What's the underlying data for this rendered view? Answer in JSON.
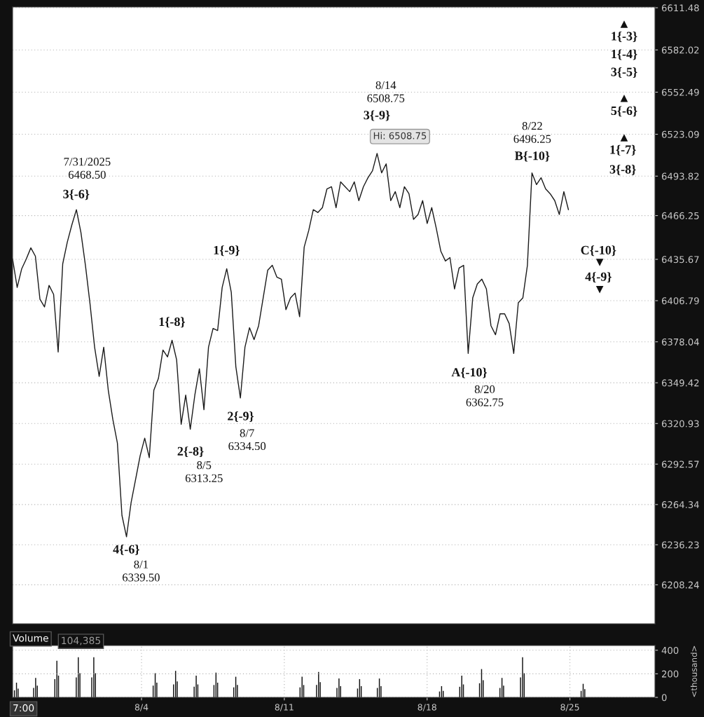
{
  "chart_data": [
    {
      "type": "line",
      "color": "#1a1a1a",
      "grid": "y",
      "ylim": [
        6181,
        6612
      ],
      "yticks": [
        6208.24,
        6236.23,
        6264.34,
        6292.57,
        6320.93,
        6349.42,
        6378.04,
        6406.79,
        6435.67,
        6466.25,
        6493.82,
        6523.09,
        6552.49,
        6582.02,
        6611.48
      ],
      "categories": [
        null,
        null,
        null,
        null,
        null,
        null,
        null,
        null,
        null,
        null,
        null,
        null,
        null,
        null,
        null,
        null,
        null,
        null,
        null,
        null,
        null,
        null,
        null,
        null,
        null,
        null,
        null,
        null,
        null,
        null,
        null,
        null,
        null,
        null,
        null,
        null,
        null,
        null,
        null,
        null,
        null,
        null,
        null,
        null,
        null,
        null,
        null,
        null,
        null,
        null,
        null,
        null,
        null,
        null,
        null,
        null,
        null,
        null,
        null,
        null,
        null,
        null,
        null,
        null,
        null,
        null,
        null,
        null,
        null,
        null,
        null,
        null,
        null,
        null,
        null,
        null,
        null,
        null,
        null,
        null,
        null,
        null,
        null,
        null,
        null,
        null,
        null,
        null,
        null,
        null,
        null,
        null,
        null,
        null,
        null,
        null,
        null,
        null,
        null,
        null,
        null,
        null,
        null,
        null,
        null,
        null,
        null,
        null,
        null,
        null,
        null,
        null,
        null,
        null,
        null,
        null,
        null,
        null,
        null,
        null,
        null,
        null,
        null,
        null,
        null,
        null,
        null,
        null,
        null,
        null,
        null,
        null,
        null,
        null,
        null,
        null,
        null,
        null,
        null,
        null,
        null,
        null
      ],
      "values": [
        6435.9,
        6416.0,
        6429.1,
        6435.9,
        6443.7,
        6437.9,
        6407.8,
        6402.4,
        6417.5,
        6411.2,
        6370.9,
        6432.5,
        6447.6,
        6459.7,
        6470.4,
        6454.4,
        6431.1,
        6404.4,
        6374.3,
        6353.9,
        6374.3,
        6344.2,
        6323.8,
        6307.3,
        6256.8,
        6241.8,
        6265.5,
        6282.0,
        6298.5,
        6310.7,
        6297.1,
        6344.2,
        6352.4,
        6372.3,
        6367.5,
        6379.1,
        6365.5,
        6320.4,
        6340.8,
        6317.0,
        6340.8,
        6359.2,
        6330.6,
        6374.3,
        6387.4,
        6385.9,
        6416.0,
        6429.1,
        6412.6,
        6360.7,
        6338.8,
        6374.3,
        6387.9,
        6379.6,
        6389.3,
        6408.7,
        6428.1,
        6431.5,
        6423.3,
        6421.8,
        6400.5,
        6408.7,
        6412.1,
        6395.6,
        6444.2,
        6455.8,
        6470.4,
        6468.4,
        6471.8,
        6484.9,
        6486.4,
        6471.8,
        6489.8,
        6486.4,
        6483.0,
        6489.8,
        6476.7,
        6486.4,
        6492.7,
        6497.6,
        6509.7,
        6496.1,
        6502.4,
        6476.7,
        6483.0,
        6471.8,
        6486.4,
        6481.5,
        6463.6,
        6467.0,
        6476.7,
        6460.7,
        6471.8,
        6457.3,
        6441.3,
        6434.5,
        6436.9,
        6415.0,
        6429.6,
        6431.5,
        6369.9,
        6408.7,
        6418.4,
        6421.8,
        6415.0,
        6389.3,
        6383.0,
        6397.6,
        6397.6,
        6390.8,
        6369.9,
        6405.3,
        6408.7,
        6431.5,
        6496.1,
        6487.9,
        6492.7,
        6484.9,
        6481.5,
        6476.7,
        6467.0,
        6483.0,
        6470.4,
        null,
        null,
        null,
        null,
        null,
        null,
        null,
        null,
        null,
        null,
        null,
        null,
        null,
        null,
        null,
        null,
        null,
        null,
        null
      ],
      "annotations": [
        "7/31/2025\n6468.50",
        "3{-6}",
        "4{-6}",
        "8/1\n6339.50",
        "1{-8}",
        "2{-8}",
        "8/5\n6313.25",
        "1{-9}",
        "2{-9}",
        "8/7\n6334.50",
        "8/14\n6508.75",
        "3{-9}",
        "Hi: 6508.75",
        "8/22\n6496.25",
        "B{-10}",
        "A{-10}",
        "8/20\n6362.75",
        "C{-10}",
        "▼",
        "4{-9}",
        "▼",
        "▲",
        "1{-3}",
        "1{-4}",
        "3{-5}",
        "▲",
        "5{-6}",
        "▲",
        "1{-7}",
        "3{-8}"
      ]
    },
    {
      "type": "bar",
      "title": "Volume",
      "annotations": [
        "104,385",
        "7:00"
      ],
      "ylabel": "<thousand>",
      "color": "#111111",
      "grid": true,
      "xlim": [
        "2025-07-28T16:19",
        "2025-08-29T04:05"
      ],
      "ylim": [
        0,
        440
      ],
      "xticks": [
        {
          "value": "2025-08-04",
          "label": "8/4"
        },
        {
          "value": "2025-08-11",
          "label": "8/11"
        },
        {
          "value": "2025-08-18",
          "label": "8/18"
        },
        {
          "value": "2025-08-25",
          "label": "8/25"
        }
      ],
      "yticks": [
        0,
        200,
        400
      ],
      "x": [
        "2025-07-28T18:29",
        "2025-07-28T20:53",
        "2025-07-28T22:48",
        "2025-07-29T17:02",
        "2025-07-29T19:26",
        "2025-07-29T21:22",
        "2025-07-30T18:00",
        "2025-07-30T20:24",
        "2025-07-30T22:19",
        "2025-07-31T19:12",
        "2025-07-31T21:36",
        "2025-07-31T23:31",
        "2025-08-01T13:26",
        "2025-08-01T15:50",
        "2025-08-01T17:46",
        "2025-08-04T13:41",
        "2025-08-04T16:05",
        "2025-08-04T18:00",
        "2025-08-05T13:41",
        "2025-08-05T16:05",
        "2025-08-05T18:00",
        "2025-08-06T13:55",
        "2025-08-06T16:19",
        "2025-08-06T18:14",
        "2025-08-07T13:12",
        "2025-08-07T15:36",
        "2025-08-07T17:31",
        "2025-08-08T12:29",
        "2025-08-08T14:53",
        "2025-08-08T16:48",
        "2025-08-11T18:29",
        "2025-08-11T20:53",
        "2025-08-11T22:48",
        "2025-08-12T13:55",
        "2025-08-12T16:19",
        "2025-08-12T18:14",
        "2025-08-13T13:55",
        "2025-08-13T16:19",
        "2025-08-13T18:14",
        "2025-08-14T14:10",
        "2025-08-14T16:34",
        "2025-08-14T18:29",
        "2025-08-15T13:26",
        "2025-08-15T15:50",
        "2025-08-15T17:46",
        "2025-08-18T14:38",
        "2025-08-18T17:02",
        "2025-08-18T18:58",
        "2025-08-19T14:24",
        "2025-08-19T16:48",
        "2025-08-19T18:43",
        "2025-08-20T13:41",
        "2025-08-20T16:05",
        "2025-08-20T18:00",
        "2025-08-21T13:41",
        "2025-08-21T16:05",
        "2025-08-21T18:00",
        "2025-08-22T13:55",
        "2025-08-22T16:19",
        "2025-08-22T18:14",
        "2025-08-25T13:12",
        "2025-08-25T15:36",
        "2025-08-25T17:31"
      ],
      "values": [
        60,
        125,
        75,
        80,
        165,
        100,
        155,
        310,
        185,
        170,
        340,
        205,
        170,
        340,
        205,
        100,
        205,
        125,
        110,
        225,
        135,
        90,
        185,
        110,
        105,
        210,
        125,
        85,
        175,
        105,
        85,
        175,
        105,
        105,
        215,
        130,
        80,
        160,
        95,
        75,
        155,
        95,
        80,
        160,
        95,
        50,
        95,
        55,
        90,
        185,
        110,
        120,
        240,
        145,
        80,
        165,
        100,
        170,
        340,
        205,
        55,
        115,
        70
      ]
    }
  ]
}
